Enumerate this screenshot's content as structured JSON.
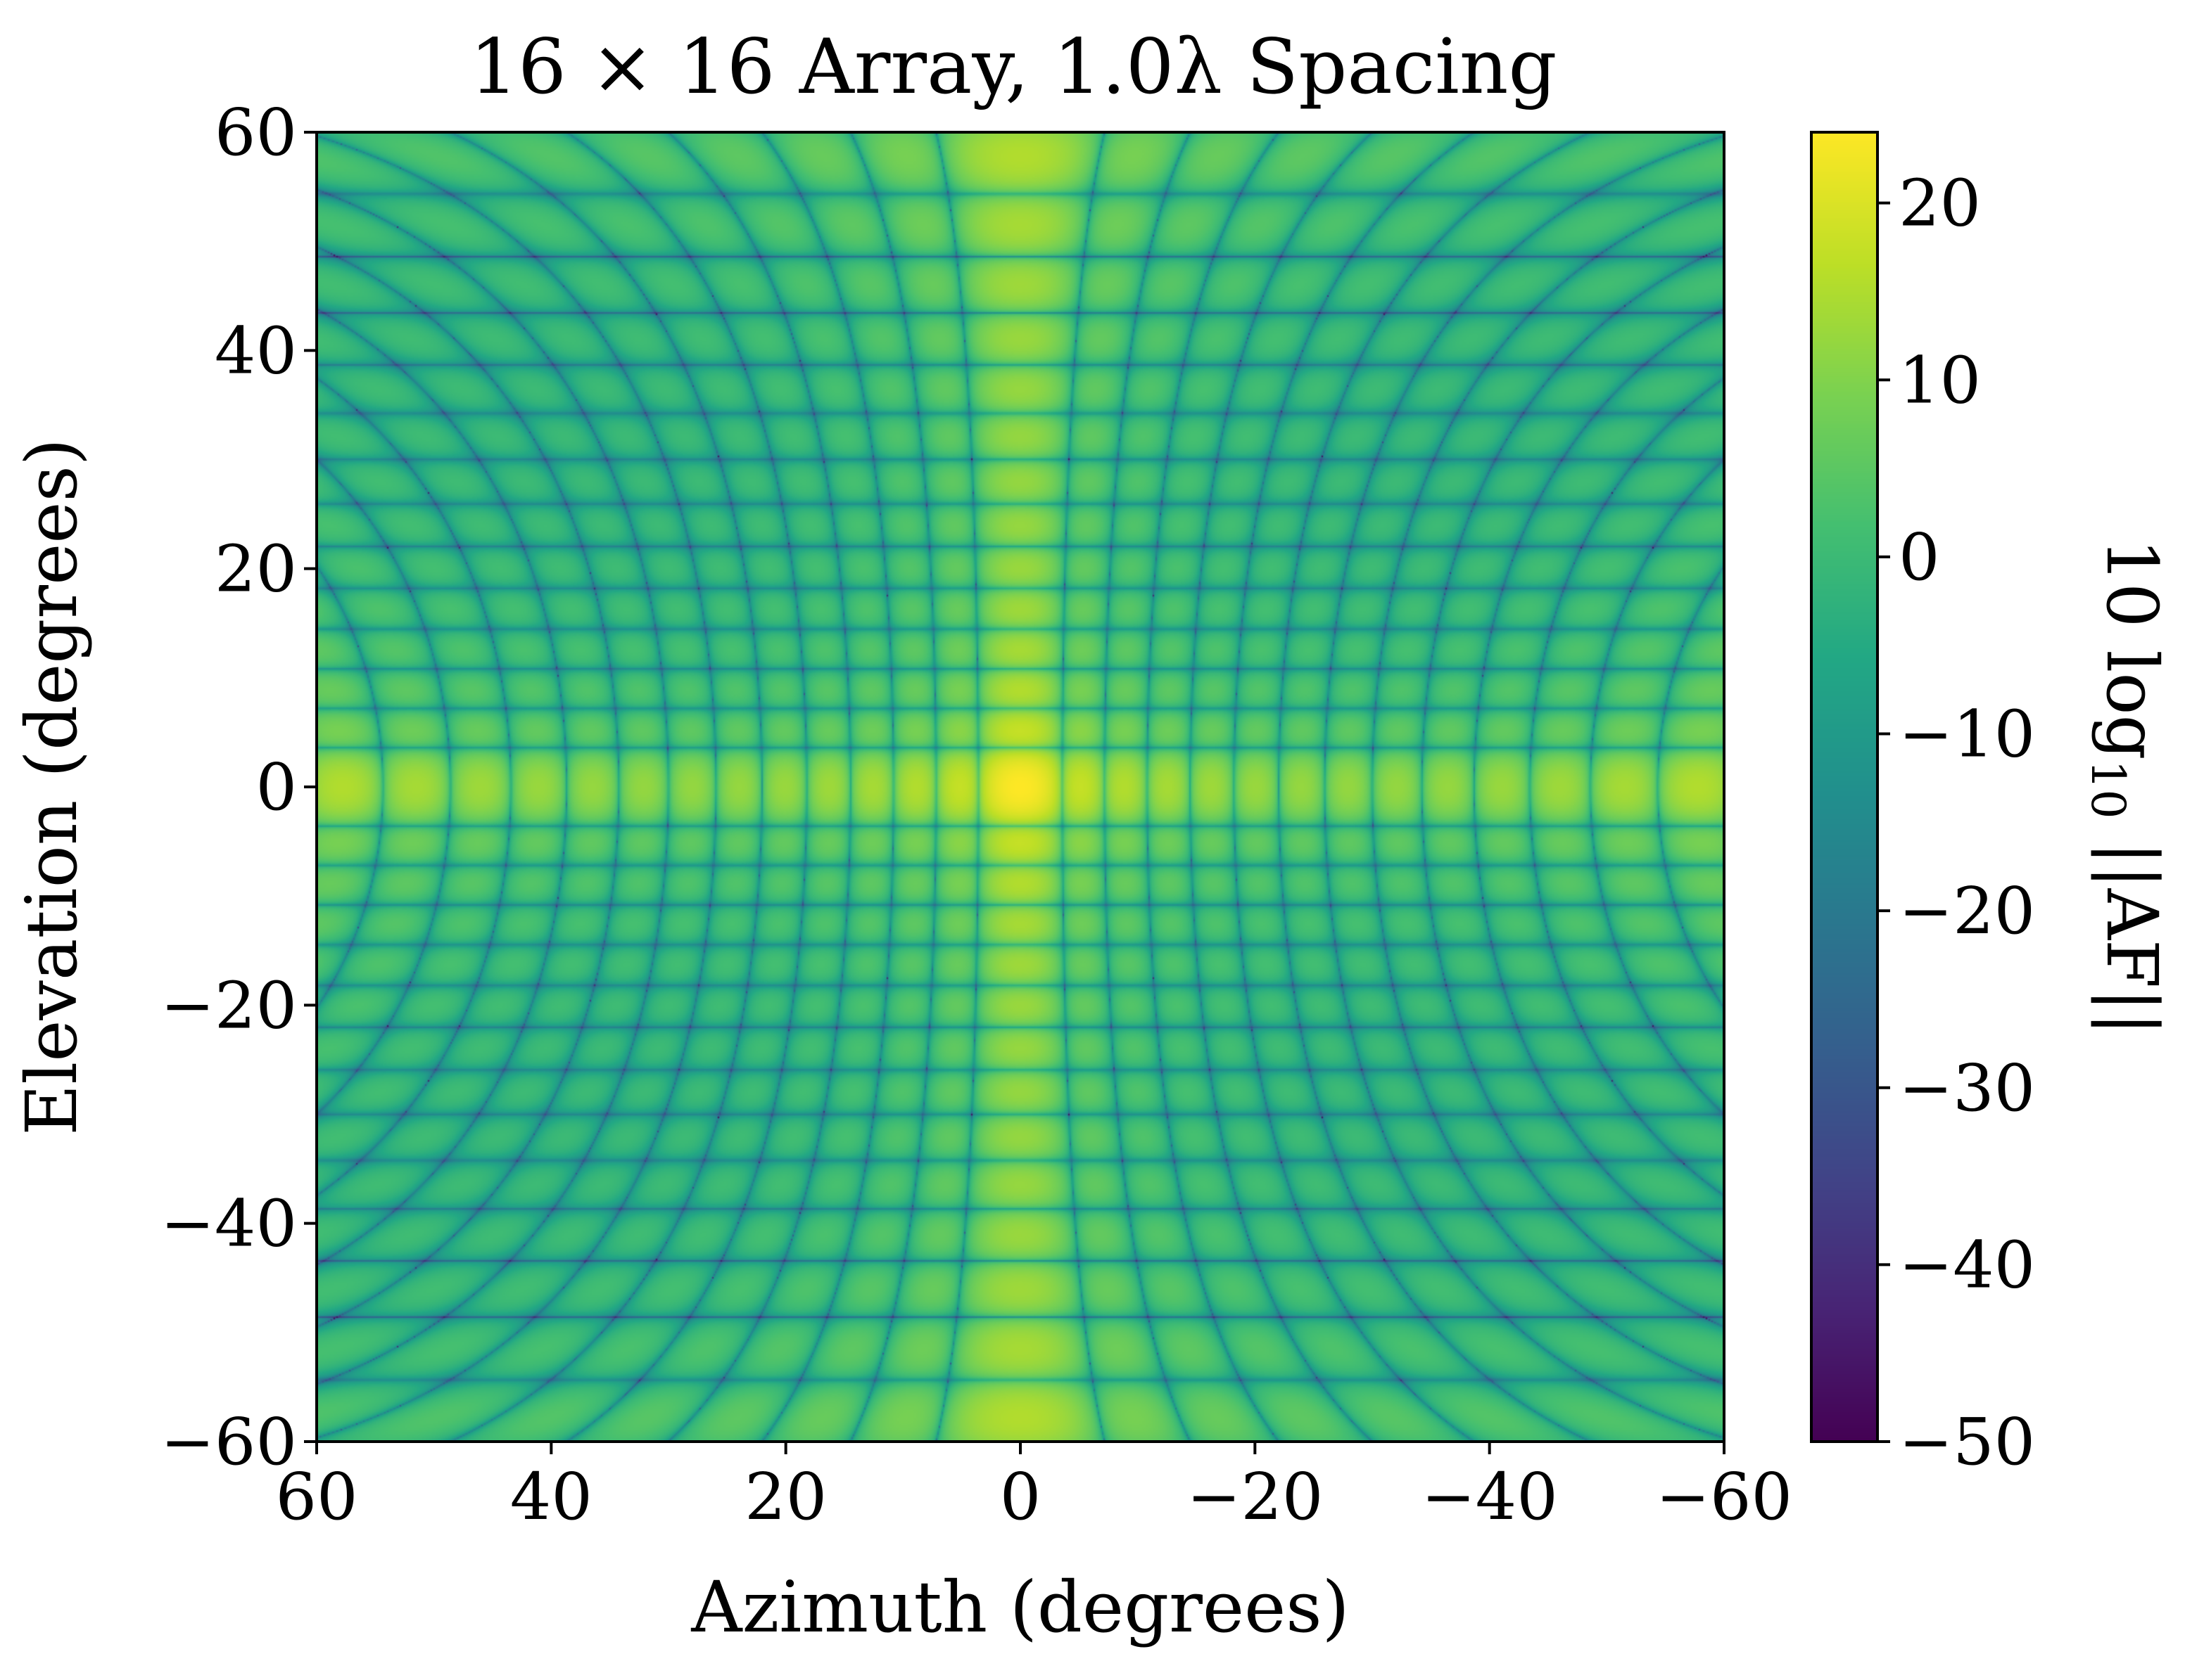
{
  "chart_data": {
    "type": "heatmap",
    "title": "16 × 16 Array, 1.0λ Spacing",
    "xlabel": "Azimuth (degrees)",
    "ylabel": "Elevation (degrees)",
    "colorbar_label": "10 log10 ||AF||",
    "colormap": "viridis",
    "x_range": [
      60,
      -60
    ],
    "y_range": [
      -60,
      60
    ],
    "x_ticks": [
      60,
      40,
      20,
      0,
      -20,
      -40,
      -60
    ],
    "y_ticks": [
      60,
      40,
      20,
      0,
      -20,
      -40,
      -60
    ],
    "x_tick_labels": [
      "60",
      "40",
      "20",
      "0",
      "−20",
      "−40",
      "−60"
    ],
    "y_tick_labels": [
      "60",
      "40",
      "20",
      "0",
      "−20",
      "−40",
      "−60"
    ],
    "colorbar_range": [
      -50,
      24
    ],
    "colorbar_ticks": [
      20,
      10,
      0,
      -10,
      -20,
      -30,
      -40,
      -50
    ],
    "colorbar_tick_labels": [
      "20",
      "10",
      "0",
      "−10",
      "−20",
      "−30",
      "−40",
      "−50"
    ],
    "array_elements": [
      16,
      16
    ],
    "element_spacing_wavelengths": 1.0,
    "peak_db": 24.1,
    "peak_location": [
      0,
      0
    ],
    "floor_db": -50,
    "grid": false,
    "colors": {
      "viridis_low": "#440154",
      "viridis_mid": "#21918c",
      "viridis_high": "#fde725",
      "axes": "#000000"
    }
  }
}
